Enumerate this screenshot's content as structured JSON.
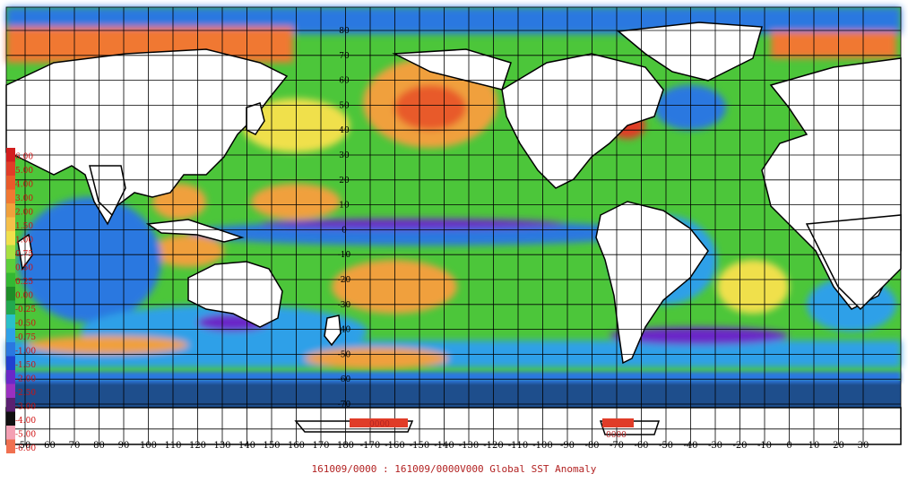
{
  "map": {
    "title": "161009/0000 : 161009/0000V000 Global SST Anomaly",
    "lon_labels": [
      "50",
      "60",
      "70",
      "80",
      "90",
      "100",
      "110",
      "120",
      "130",
      "140",
      "150",
      "160",
      "170",
      "180",
      "-170",
      "-160",
      "-150",
      "-140",
      "-130",
      "-120",
      "-110",
      "-100",
      "-90",
      "-80",
      "-70",
      "-60",
      "-50",
      "-40",
      "-30",
      "-20",
      "-10",
      "0",
      "10",
      "20",
      "30"
    ],
    "lat_labels": [
      "80",
      "70",
      "60",
      "50",
      "40",
      "30",
      "20",
      "10",
      "0",
      "-10",
      "-20",
      "-30",
      "-40",
      "-50",
      "-60",
      "-70"
    ],
    "legend": [
      {
        "label": "6.00",
        "color": "#d21e1e"
      },
      {
        "label": "5.00",
        "color": "#e03c28"
      },
      {
        "label": "4.00",
        "color": "#e85a2a"
      },
      {
        "label": "3.00",
        "color": "#f07832"
      },
      {
        "label": "2.00",
        "color": "#f0a03c"
      },
      {
        "label": "1.50",
        "color": "#f5c04a"
      },
      {
        "label": "1.00",
        "color": "#f0e04c"
      },
      {
        "label": "0.75",
        "color": "#a8e040"
      },
      {
        "label": "0.50",
        "color": "#5ccf3a"
      },
      {
        "label": "0.25",
        "color": "#34b832"
      },
      {
        "label": "0.00",
        "color": "#1e8c28"
      },
      {
        "label": "-0.25",
        "color": "#22a84e"
      },
      {
        "label": "-0.50",
        "color": "#2ac0c8"
      },
      {
        "label": "-0.75",
        "color": "#2ea0e8"
      },
      {
        "label": "-1.00",
        "color": "#2a78e0"
      },
      {
        "label": "-1.50",
        "color": "#2040d0"
      },
      {
        "label": "-2.00",
        "color": "#6a28c8"
      },
      {
        "label": "-2.50",
        "color": "#9a30c0"
      },
      {
        "label": "-3.00",
        "color": "#5a2070"
      },
      {
        "label": "-4.00",
        "color": "#101010"
      },
      {
        "label": "-5.00",
        "color": "#f4a0b4"
      },
      {
        "label": "-6.00",
        "color": "#f07050"
      }
    ],
    "box_labels": [
      "0000",
      "0000"
    ],
    "colors": {
      "land": "#ffffff",
      "ice": "#1e4e8c",
      "ocean_base": "#5ccf3a",
      "grid": "#000000",
      "label": "#b22222"
    }
  }
}
